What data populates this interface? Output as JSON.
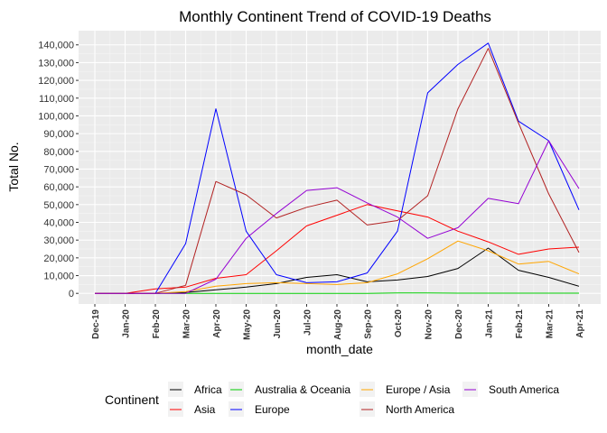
{
  "chart_data": {
    "type": "line",
    "title": "Monthly Continent Trend of COVID-19 Deaths",
    "xlabel": "month_date",
    "ylabel": "Total No.",
    "ylim": [
      -6000,
      148000
    ],
    "categories": [
      "Dec-19",
      "Jan-20",
      "Feb-20",
      "Mar-20",
      "Apr-20",
      "May-20",
      "Jun-20",
      "Jul-20",
      "Aug-20",
      "Sep-20",
      "Oct-20",
      "Nov-20",
      "Dec-20",
      "Jan-21",
      "Feb-21",
      "Mar-21",
      "Apr-21"
    ],
    "y_ticks": [
      0,
      10000,
      20000,
      30000,
      40000,
      50000,
      60000,
      70000,
      80000,
      90000,
      100000,
      110000,
      120000,
      130000,
      140000
    ],
    "y_tick_labels": [
      "0",
      "10,000",
      "20,000",
      "30,000",
      "40,000",
      "50,000",
      "60,000",
      "70,000",
      "80,000",
      "90,000",
      "100,000",
      "110,000",
      "120,000",
      "130,000",
      "140,000"
    ],
    "grid": true,
    "legend_title": "Continent",
    "legend_position": "bottom",
    "series": [
      {
        "name": "Africa",
        "color": "#000000",
        "values": [
          0,
          0,
          0,
          500,
          2000,
          3500,
          5500,
          9000,
          10500,
          6500,
          7500,
          9500,
          14000,
          25500,
          13000,
          9000,
          4000
        ]
      },
      {
        "name": "Asia",
        "color": "#ff0000",
        "values": [
          0,
          0,
          2500,
          3500,
          8500,
          10500,
          24000,
          38000,
          44000,
          50000,
          46500,
          43000,
          35000,
          29000,
          22000,
          25000,
          26000
        ]
      },
      {
        "name": "Australia & Oceania",
        "color": "#00cc00",
        "values": [
          0,
          0,
          0,
          0,
          0,
          0,
          0,
          0,
          0,
          0,
          200,
          200,
          100,
          100,
          100,
          100,
          100
        ]
      },
      {
        "name": "Europe",
        "color": "#0000ff",
        "values": [
          0,
          0,
          0,
          28000,
          104000,
          35000,
          10500,
          6000,
          6500,
          11500,
          35000,
          113000,
          129000,
          141000,
          97000,
          86000,
          47000
        ]
      },
      {
        "name": "Europe / Asia",
        "color": "#ffa500",
        "values": [
          0,
          0,
          0,
          1000,
          4000,
          5500,
          6000,
          5500,
          5000,
          6000,
          11000,
          19500,
          29500,
          24000,
          16500,
          18000,
          11000
        ]
      },
      {
        "name": "North America",
        "color": "#b22222",
        "values": [
          0,
          0,
          0,
          4500,
          63000,
          55500,
          42500,
          48500,
          52500,
          38500,
          41000,
          55000,
          104000,
          138000,
          96000,
          56000,
          23000
        ]
      },
      {
        "name": "South America",
        "color": "#9400d3",
        "values": [
          0,
          0,
          0,
          0,
          8000,
          31000,
          45000,
          58000,
          59500,
          51000,
          43000,
          31000,
          37000,
          53500,
          50500,
          86000,
          59000
        ]
      }
    ]
  }
}
